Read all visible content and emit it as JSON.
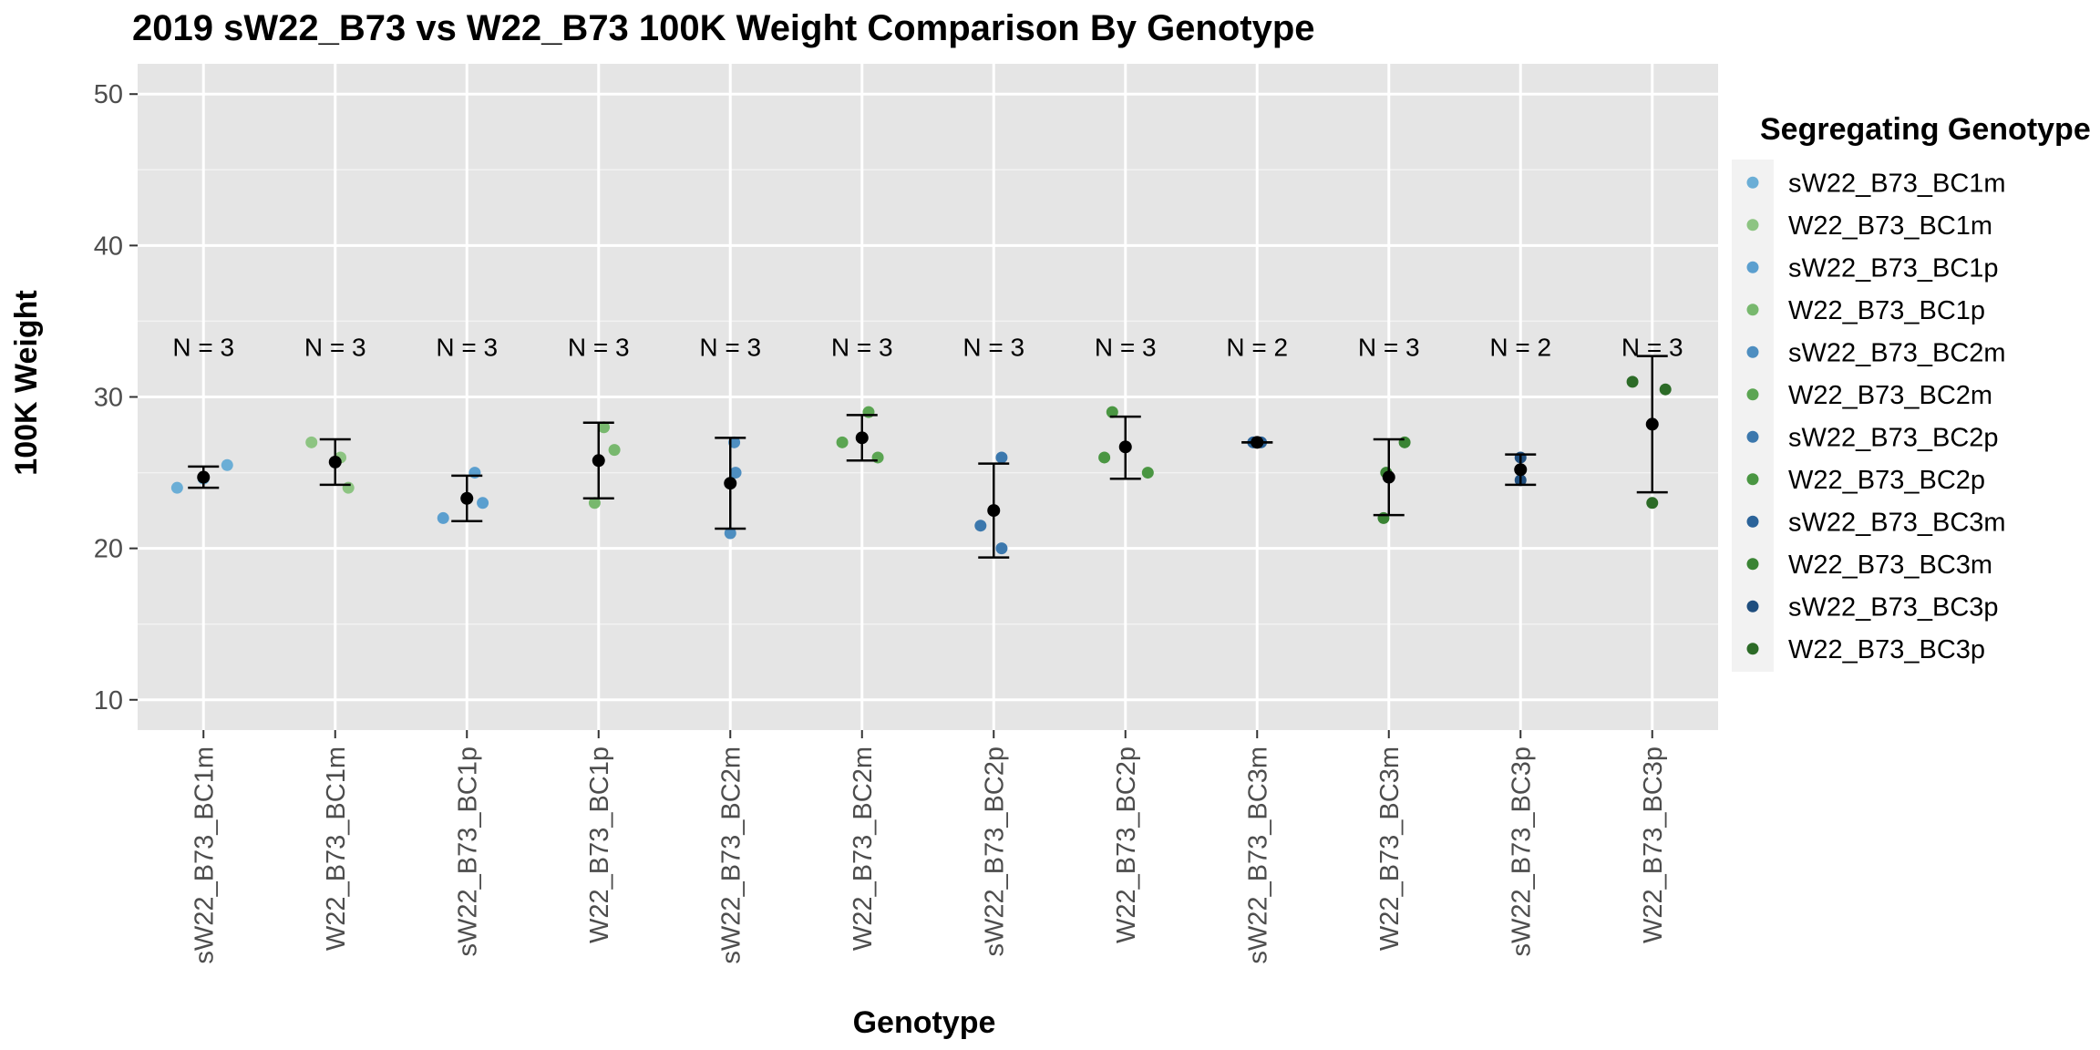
{
  "chart_data": {
    "type": "scatter",
    "title": "2019 sW22_B73 vs W22_B73 100K Weight Comparison By Genotype",
    "xlabel": "Genotype",
    "ylabel": "100K Weight",
    "ylim": [
      8,
      52
    ],
    "yticks": [
      10,
      20,
      30,
      40,
      50
    ],
    "grid": true,
    "legend": {
      "title": "Segregating Genotype",
      "position": "right"
    },
    "categories": [
      "sW22_B73_BC1m",
      "W22_B73_BC1m",
      "sW22_B73_BC1p",
      "W22_B73_BC1p",
      "sW22_B73_BC2m",
      "W22_B73_BC2m",
      "sW22_B73_BC2p",
      "W22_B73_BC2p",
      "sW22_B73_BC3m",
      "W22_B73_BC3m",
      "sW22_B73_BC3p",
      "W22_B73_BC3p"
    ],
    "series": [
      {
        "name": "sW22_B73_BC1m",
        "color": "#6BAED6",
        "points": [
          {
            "x": -0.2,
            "y": 24.0
          },
          {
            "x": 0.18,
            "y": 25.5
          },
          {
            "x": 0.0,
            "y": 24.6
          }
        ],
        "mean": 24.7,
        "err": [
          24.0,
          25.4
        ],
        "n_label": "N = 3"
      },
      {
        "name": "W22_B73_BC1m",
        "color": "#8DC482",
        "points": [
          {
            "x": -0.18,
            "y": 27.0
          },
          {
            "x": 0.04,
            "y": 26.0
          },
          {
            "x": 0.1,
            "y": 24.0
          }
        ],
        "mean": 25.7,
        "err": [
          24.2,
          27.2
        ],
        "n_label": "N = 3"
      },
      {
        "name": "sW22_B73_BC1p",
        "color": "#5B9FCF",
        "points": [
          {
            "x": -0.18,
            "y": 22.0
          },
          {
            "x": 0.06,
            "y": 25.0
          },
          {
            "x": 0.12,
            "y": 23.0
          }
        ],
        "mean": 23.3,
        "err": [
          21.8,
          24.8
        ],
        "n_label": "N = 3"
      },
      {
        "name": "W22_B73_BC1p",
        "color": "#78B86E",
        "points": [
          {
            "x": -0.03,
            "y": 23.0
          },
          {
            "x": 0.04,
            "y": 28.0
          },
          {
            "x": 0.12,
            "y": 26.5
          }
        ],
        "mean": 25.8,
        "err": [
          23.3,
          28.3
        ],
        "n_label": "N = 3"
      },
      {
        "name": "sW22_B73_BC2m",
        "color": "#4E8EC0",
        "points": [
          {
            "x": 0.0,
            "y": 21.0
          },
          {
            "x": 0.03,
            "y": 27.0
          },
          {
            "x": 0.04,
            "y": 25.0
          }
        ],
        "mean": 24.3,
        "err": [
          21.3,
          27.3
        ],
        "n_label": "N = 3"
      },
      {
        "name": "W22_B73_BC2m",
        "color": "#5BA552",
        "points": [
          {
            "x": -0.15,
            "y": 27.0
          },
          {
            "x": 0.05,
            "y": 29.0
          },
          {
            "x": 0.12,
            "y": 26.0
          }
        ],
        "mean": 27.3,
        "err": [
          25.8,
          28.8
        ],
        "n_label": "N = 3"
      },
      {
        "name": "sW22_B73_BC2p",
        "color": "#3C78AD",
        "points": [
          {
            "x": -0.1,
            "y": 21.5
          },
          {
            "x": 0.06,
            "y": 26.0
          },
          {
            "x": 0.06,
            "y": 20.0
          }
        ],
        "mean": 22.5,
        "err": [
          19.4,
          25.6
        ],
        "n_label": "N = 3"
      },
      {
        "name": "W22_B73_BC2p",
        "color": "#4A9642",
        "points": [
          {
            "x": -0.16,
            "y": 26.0
          },
          {
            "x": -0.1,
            "y": 29.0
          },
          {
            "x": 0.17,
            "y": 25.0
          }
        ],
        "mean": 26.7,
        "err": [
          24.6,
          28.7
        ],
        "n_label": "N = 3"
      },
      {
        "name": "sW22_B73_BC3m",
        "color": "#2B6399",
        "points": [
          {
            "x": -0.03,
            "y": 27.0
          },
          {
            "x": 0.03,
            "y": 27.0
          }
        ],
        "mean": 27.0,
        "err": [
          27.0,
          27.0
        ],
        "n_label": "N = 2"
      },
      {
        "name": "W22_B73_BC3m",
        "color": "#3A8434",
        "points": [
          {
            "x": -0.04,
            "y": 22.0
          },
          {
            "x": -0.02,
            "y": 25.0
          },
          {
            "x": 0.12,
            "y": 27.0
          }
        ],
        "mean": 24.7,
        "err": [
          22.2,
          27.2
        ],
        "n_label": "N = 3"
      },
      {
        "name": "sW22_B73_BC3p",
        "color": "#1F4E7E",
        "points": [
          {
            "x": 0.0,
            "y": 26.0
          },
          {
            "x": 0.0,
            "y": 24.5
          }
        ],
        "mean": 25.2,
        "err": [
          24.2,
          26.2
        ],
        "n_label": "N = 2"
      },
      {
        "name": "W22_B73_BC3p",
        "color": "#2C6B27",
        "points": [
          {
            "x": -0.15,
            "y": 31.0
          },
          {
            "x": 0.0,
            "y": 23.0
          },
          {
            "x": 0.1,
            "y": 30.5
          }
        ],
        "mean": 28.2,
        "err": [
          23.7,
          32.7
        ],
        "n_label": "N = 3"
      }
    ],
    "n_label_y": 33.3
  }
}
